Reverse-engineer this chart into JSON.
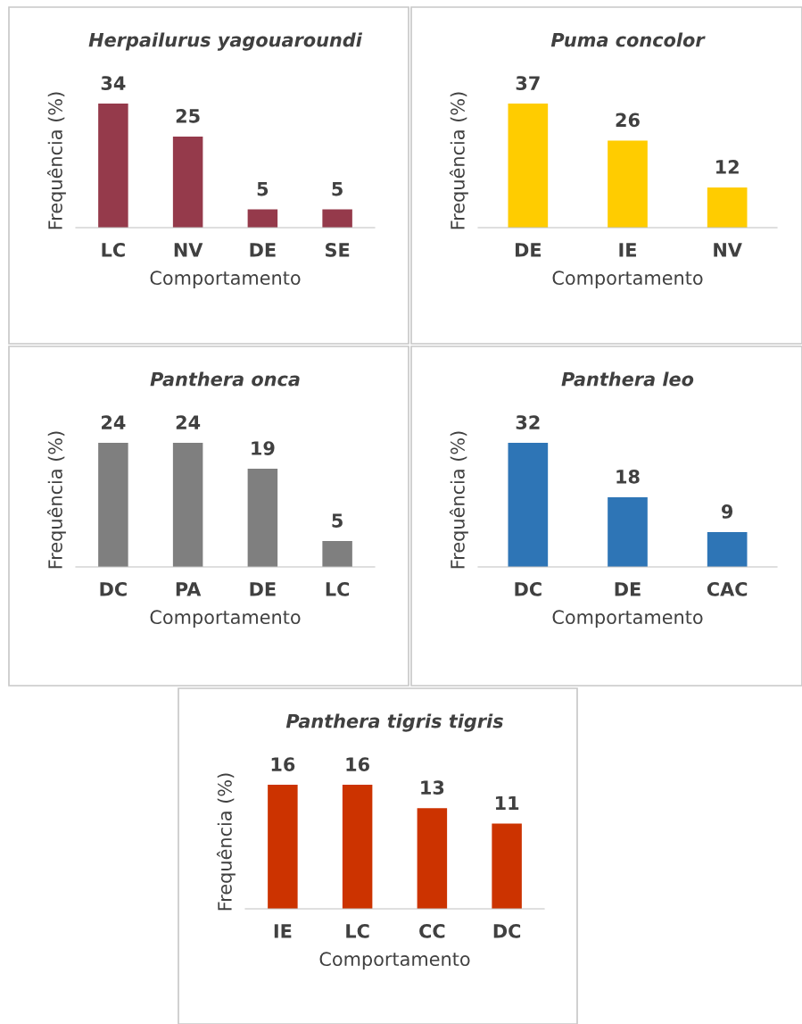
{
  "chart_data": [
    {
      "type": "bar",
      "title": "Herpailurus yagouaroundi",
      "xlabel": "Comportamento",
      "ylabel": "Frequência (%)",
      "categories": [
        "LC",
        "NV",
        "DE",
        "SE"
      ],
      "values": [
        34,
        25,
        5,
        5
      ],
      "color": "#953a4b",
      "data_labels": true,
      "tick_labels": "x",
      "grid": false,
      "legend": false
    },
    {
      "type": "bar",
      "title": "Puma concolor",
      "xlabel": "Comportamento",
      "ylabel": "Frequência (%)",
      "categories": [
        "DE",
        "IE",
        "NV"
      ],
      "values": [
        37,
        26,
        12
      ],
      "color": "#ffcc00",
      "data_labels": true,
      "tick_labels": "x",
      "grid": false,
      "legend": false
    },
    {
      "type": "bar",
      "title": "Panthera onca",
      "xlabel": "Comportamento",
      "ylabel": "Frequência (%)",
      "categories": [
        "DC",
        "PA",
        "DE",
        "LC"
      ],
      "values": [
        24,
        24,
        19,
        5
      ],
      "color": "#7f7f7f",
      "data_labels": true,
      "tick_labels": "x",
      "grid": false,
      "legend": false
    },
    {
      "type": "bar",
      "title": "Panthera leo",
      "xlabel": "Comportamento",
      "ylabel": "Frequência (%)",
      "categories": [
        "DC",
        "DE",
        "CAC"
      ],
      "values": [
        32,
        18,
        9
      ],
      "color": "#2e75b6",
      "data_labels": true,
      "tick_labels": "x",
      "grid": false,
      "legend": false
    },
    {
      "type": "bar",
      "title": "Panthera tigris tigris",
      "xlabel": "Comportamento",
      "ylabel": "Frequência (%)",
      "categories": [
        "IE",
        "LC",
        "CC",
        "DC"
      ],
      "values": [
        16,
        16,
        13,
        11
      ],
      "color": "#cc3300",
      "data_labels": true,
      "tick_labels": "x",
      "grid": false,
      "legend": false
    }
  ]
}
